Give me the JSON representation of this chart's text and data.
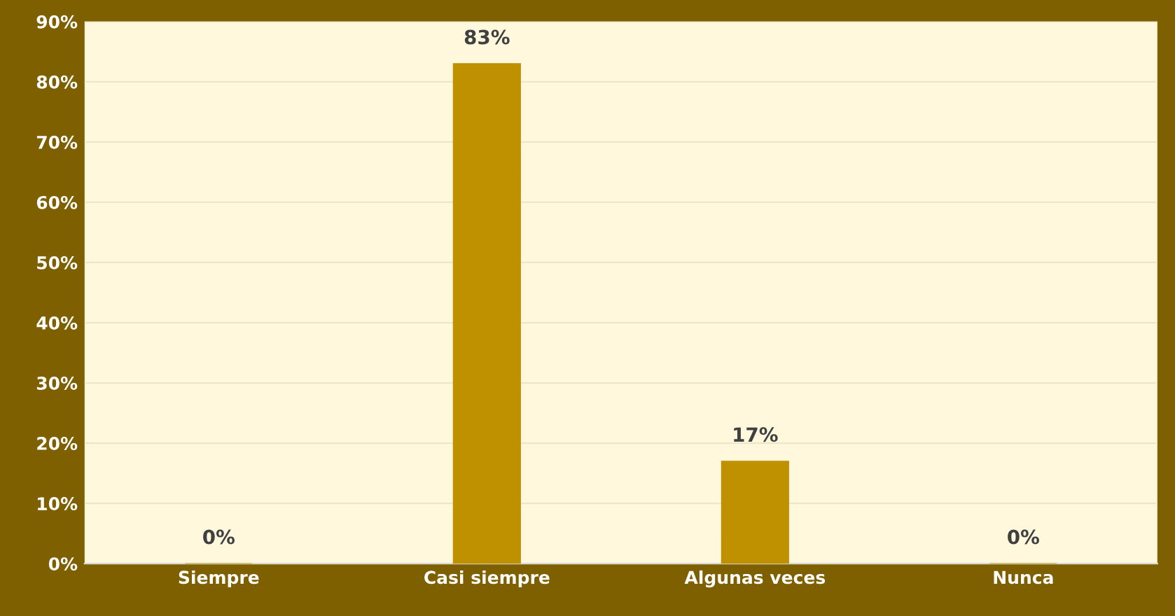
{
  "chart_data": {
    "type": "bar",
    "categories": [
      "Siempre",
      "Casi siempre",
      "Algunas veces",
      "Nunca"
    ],
    "values": [
      0,
      83,
      17,
      0
    ],
    "color": "#bf9000",
    "value_labels": [
      "0%",
      "83%",
      "17%",
      "0%"
    ],
    "ylim": [
      0,
      90
    ],
    "yticks": [
      {
        "value": 0,
        "label": "0%"
      },
      {
        "value": 10,
        "label": "10%"
      },
      {
        "value": 20,
        "label": "20%"
      },
      {
        "value": 30,
        "label": "30%"
      },
      {
        "value": 40,
        "label": "40%"
      },
      {
        "value": 50,
        "label": "50%"
      },
      {
        "value": 60,
        "label": "60%"
      },
      {
        "value": 70,
        "label": "70%"
      },
      {
        "value": 80,
        "label": "80%"
      },
      {
        "value": 90,
        "label": "90%"
      }
    ],
    "grid": "y",
    "legend": false
  }
}
